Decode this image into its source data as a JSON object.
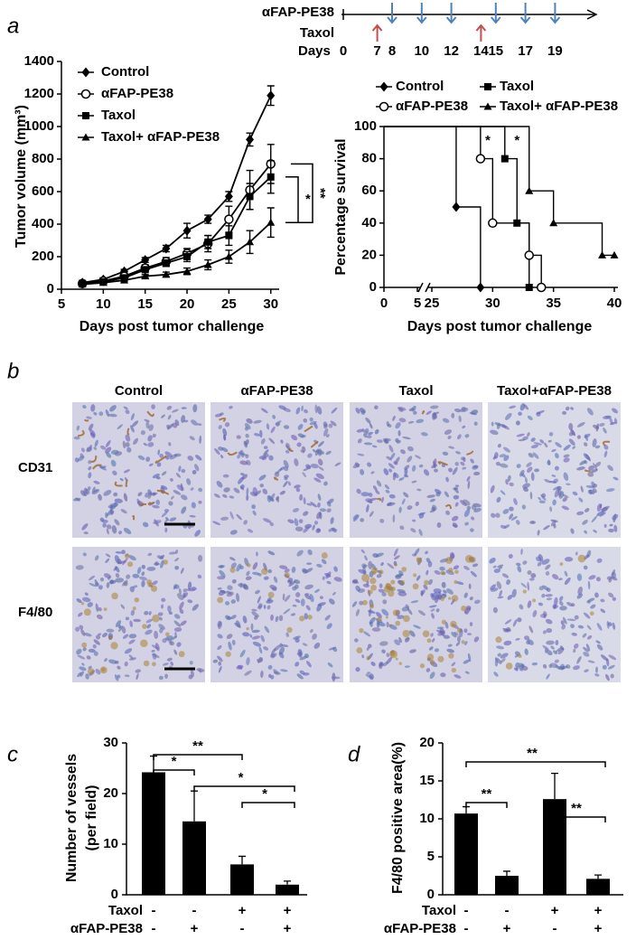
{
  "panel_labels": [
    "a",
    "b",
    "c",
    "d"
  ],
  "chart_data": [
    {
      "type": "timeline",
      "axis_label": "Days",
      "ticks": [
        0,
        7,
        8,
        10,
        12,
        14,
        15,
        17,
        19
      ],
      "series": [
        {
          "name": "αFAP-PE38",
          "color": "#4f81bd",
          "days": [
            8,
            10,
            12,
            15,
            17,
            19
          ]
        },
        {
          "name": "Taxol",
          "color": "#c0504d",
          "days": [
            7,
            14
          ]
        }
      ]
    },
    {
      "type": "line",
      "xlabel": "Days post tumor challenge",
      "ylabel": "Tumor volume (mm³)",
      "x": [
        7.5,
        10,
        12.5,
        15,
        17.5,
        20,
        22.5,
        25,
        27.5,
        30
      ],
      "xlim": [
        5,
        31
      ],
      "xticks": [
        5,
        10,
        15,
        20,
        25,
        30
      ],
      "ylim": [
        0,
        1400
      ],
      "yticks": [
        0,
        200,
        400,
        600,
        800,
        1000,
        1200,
        1400
      ],
      "legend": "upper left",
      "series": [
        {
          "name": "Control",
          "marker": "diamond",
          "color": "#000000",
          "values": [
            40,
            60,
            110,
            180,
            250,
            360,
            430,
            570,
            920,
            1190
          ],
          "errors": [
            8,
            10,
            12,
            15,
            20,
            45,
            25,
            30,
            40,
            60
          ]
        },
        {
          "name": "αFAP-PE38",
          "marker": "circle",
          "color": "#000000",
          "values": [
            35,
            50,
            80,
            130,
            170,
            220,
            280,
            430,
            610,
            770
          ],
          "errors": [
            5,
            8,
            10,
            20,
            25,
            30,
            50,
            80,
            120,
            120
          ]
        },
        {
          "name": "Taxol",
          "marker": "square",
          "color": "#000000",
          "values": [
            35,
            45,
            70,
            120,
            160,
            200,
            290,
            330,
            570,
            690
          ],
          "errors": [
            5,
            8,
            10,
            15,
            20,
            30,
            40,
            60,
            80,
            100
          ]
        },
        {
          "name": "Taxol+ αFAP-PE38",
          "marker": "triangle",
          "color": "#000000",
          "values": [
            30,
            40,
            55,
            80,
            90,
            110,
            150,
            200,
            290,
            410
          ],
          "errors": [
            5,
            5,
            8,
            10,
            15,
            20,
            30,
            40,
            70,
            90
          ]
        }
      ],
      "annotations": [
        "*",
        "**"
      ]
    },
    {
      "type": "step",
      "xlabel": "Days post tumor challenge",
      "ylabel": "Percentage survival",
      "xlim": [
        0,
        40
      ],
      "xbreak": [
        5,
        25
      ],
      "xticks": [
        0,
        5,
        25,
        30,
        35,
        40
      ],
      "ylim": [
        0,
        100
      ],
      "yticks": [
        0,
        20,
        40,
        60,
        80,
        100
      ],
      "legend": "top",
      "series": [
        {
          "name": "Control",
          "marker": "diamond",
          "color": "#000000",
          "x": [
            0,
            27,
            29
          ],
          "values": [
            100,
            50,
            0
          ]
        },
        {
          "name": "Taxol",
          "marker": "square",
          "color": "#000000",
          "x": [
            0,
            31,
            32,
            33
          ],
          "values": [
            100,
            80,
            40,
            0
          ]
        },
        {
          "name": "αFAP-PE38",
          "marker": "circle",
          "color": "#000000",
          "x": [
            0,
            29,
            30,
            33,
            34
          ],
          "values": [
            100,
            80,
            40,
            20,
            0
          ]
        },
        {
          "name": "Taxol+ αFAP-PE38",
          "marker": "triangle",
          "color": "#000000",
          "x": [
            0,
            33,
            35,
            39,
            40
          ],
          "values": [
            100,
            60,
            40,
            20,
            20
          ]
        }
      ],
      "annotations": [
        "*",
        "*"
      ]
    },
    {
      "type": "bar",
      "ylabel": [
        "Number of vessels",
        "(per field)"
      ],
      "color": "#000000",
      "values": [
        24.2,
        14.5,
        6,
        2
      ],
      "errors": [
        3.2,
        6,
        1.6,
        0.7
      ],
      "ylim": [
        0,
        30
      ],
      "yticks": [
        0,
        10,
        20,
        30
      ],
      "rows": [
        {
          "name": "Taxol",
          "labels": [
            "-",
            "-",
            "+",
            "+"
          ]
        },
        {
          "name": "αFAP-PE38",
          "labels": [
            "-",
            "+",
            "-",
            "+"
          ]
        }
      ],
      "annotations": [
        "*",
        "**",
        "*",
        "*"
      ]
    },
    {
      "type": "bar",
      "ylabel": [
        "F4/80 positive area(%)"
      ],
      "color": "#000000",
      "values": [
        10.7,
        2.5,
        12.6,
        2.1
      ],
      "errors": [
        0.9,
        0.6,
        3.4,
        0.5
      ],
      "ylim": [
        0,
        20
      ],
      "yticks": [
        0,
        5,
        10,
        15,
        20
      ],
      "rows": [
        {
          "name": "Taxol",
          "labels": [
            "-",
            "-",
            "+",
            "+"
          ]
        },
        {
          "name": "αFAP-PE38",
          "labels": [
            "-",
            "+",
            "-",
            "+"
          ]
        }
      ],
      "annotations": [
        "**",
        "**",
        "**"
      ]
    }
  ],
  "histology": {
    "columns": [
      "Control",
      "αFAP-PE38",
      "Taxol",
      "Taxol+αFAP-PE38"
    ],
    "rows": [
      "CD31",
      "F4/80"
    ]
  }
}
